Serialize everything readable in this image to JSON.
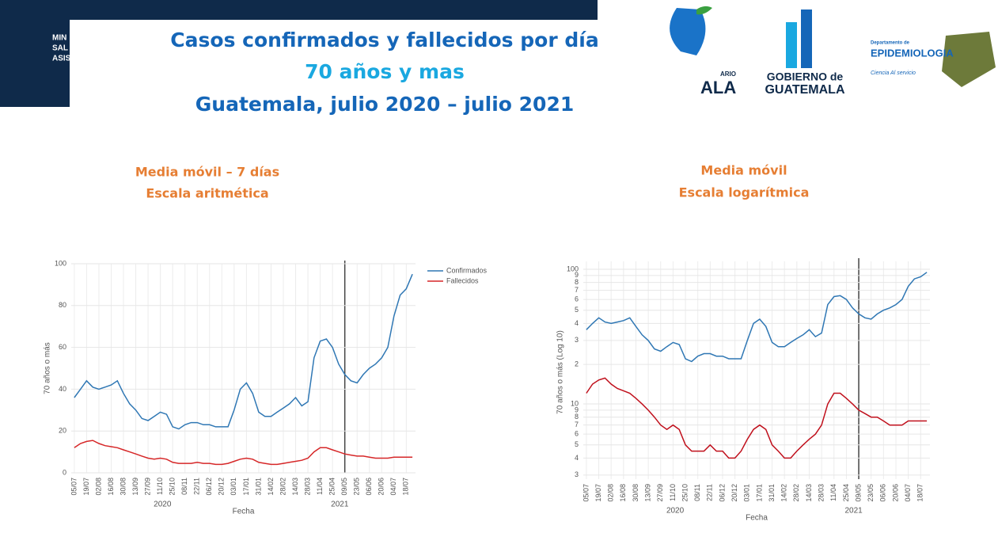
{
  "header": {
    "ministry_lines": [
      "MIN",
      "SAL",
      "ASIS"
    ],
    "title_lines": [
      "Casos confirmados y fallecidos por día",
      "70 años y mas",
      "Guatemala, julio 2020 – julio 2021"
    ],
    "logos": {
      "bicentenario_fragment": "ARIO",
      "bicentenario_name": "ALA",
      "gobierno_top": "GOBIERNO de",
      "gobierno_bottom": "GUATEMALA",
      "dept_top": "Departamento de",
      "dept_name": "EPIDEMIOLOGIA",
      "dept_motto": "Ciencia Al servicio"
    }
  },
  "chart_data": [
    {
      "type": "line",
      "title_lines": [
        "Media móvil – 7 días",
        "Escala aritmética"
      ],
      "xlabel": "Fecha",
      "ylabel": "70 años o más",
      "year_labels": [
        "2020",
        "2021"
      ],
      "categories": [
        "05/07",
        null,
        "19/07",
        null,
        "02/08",
        null,
        "16/08",
        null,
        "30/08",
        null,
        "13/09",
        null,
        "27/09",
        null,
        "11/10",
        null,
        "25/10",
        null,
        "08/11",
        null,
        "22/11",
        null,
        "06/12",
        null,
        "20/12",
        null,
        "03/01",
        null,
        "17/01",
        null,
        "31/01",
        null,
        "14/02",
        null,
        "28/02",
        null,
        "14/03",
        null,
        "28/03",
        null,
        "11/04",
        null,
        "25/04",
        null,
        "09/05",
        null,
        "23/05",
        null,
        "06/06",
        null,
        "20/06",
        null,
        "04/07",
        null,
        "18/07",
        null
      ],
      "series": [
        {
          "name": "Confirmados",
          "color": "#2f77b4",
          "values": [
            36,
            40,
            44,
            41,
            40,
            41,
            42,
            44,
            38,
            33,
            30,
            26,
            25,
            27,
            29,
            28,
            22,
            21,
            23,
            24,
            24,
            23,
            23,
            22,
            22,
            22,
            30,
            40,
            43,
            38,
            29,
            27,
            27,
            29,
            31,
            33,
            36,
            32,
            34,
            55,
            63,
            64,
            60,
            52,
            47,
            44,
            43,
            47,
            50,
            52,
            55,
            60,
            75,
            85,
            88,
            95
          ]
        },
        {
          "name": "Fallecidos",
          "color": "#d62728",
          "values": [
            12,
            14,
            15,
            15.5,
            14,
            13,
            12.5,
            12,
            11,
            10,
            9,
            8,
            7,
            6.5,
            7,
            6.5,
            5,
            4.5,
            4.5,
            4.5,
            5,
            4.5,
            4.5,
            4,
            4,
            4.5,
            5.5,
            6.5,
            7,
            6.5,
            5,
            4.5,
            4,
            4,
            4.5,
            5,
            5.5,
            6,
            7,
            10,
            12,
            12,
            11,
            10,
            9,
            8.5,
            8,
            8,
            7.5,
            7,
            7,
            7,
            7.5,
            7.5,
            7.5,
            7.5
          ]
        }
      ],
      "ylim": [
        0,
        100
      ],
      "yticks": [
        0,
        20,
        40,
        60,
        80,
        100
      ],
      "grid": true,
      "legend": "top-right",
      "reference_line_x": 44
    },
    {
      "type": "line",
      "title_lines": [
        "Media móvil",
        "Escala logarítmica"
      ],
      "xlabel": "Fecha",
      "ylabel": "70 años o más (Log 10)",
      "year_labels": [
        "2020",
        "2021"
      ],
      "log_scale": true,
      "grid": true,
      "reference_line_x": 44,
      "categories": [
        "05/07",
        null,
        "19/07",
        null,
        "02/08",
        null,
        "16/08",
        null,
        "30/08",
        null,
        "13/09",
        null,
        "27/09",
        null,
        "11/10",
        null,
        "25/10",
        null,
        "08/11",
        null,
        "22/11",
        null,
        "06/12",
        null,
        "20/12",
        null,
        "03/01",
        null,
        "17/01",
        null,
        "31/01",
        null,
        "14/02",
        null,
        "28/02",
        null,
        "14/03",
        null,
        "28/03",
        null,
        "11/04",
        null,
        "25/04",
        null,
        "09/05",
        null,
        "23/05",
        null,
        "06/06",
        null,
        "20/06",
        null,
        "04/07",
        null,
        "18/07",
        null
      ],
      "panels": [
        {
          "series": [
            {
              "name": "Confirmados",
              "color": "#2f77b4",
              "values": [
                36,
                40,
                44,
                41,
                40,
                41,
                42,
                44,
                38,
                33,
                30,
                26,
                25,
                27,
                29,
                28,
                22,
                21,
                23,
                24,
                24,
                23,
                23,
                22,
                22,
                22,
                30,
                40,
                43,
                38,
                29,
                27,
                27,
                29,
                31,
                33,
                36,
                32,
                34,
                55,
                63,
                64,
                60,
                52,
                47,
                44,
                43,
                47,
                50,
                52,
                55,
                60,
                75,
                85,
                88,
                95
              ]
            }
          ],
          "ylim": [
            18,
            100
          ],
          "yticks": [
            {
              "value": 20,
              "label": "2"
            },
            {
              "value": 30,
              "label": "3"
            },
            {
              "value": 40,
              "label": "4"
            },
            {
              "value": 50,
              "label": "5"
            },
            {
              "value": 60,
              "label": "6"
            },
            {
              "value": 70,
              "label": "7"
            },
            {
              "value": 80,
              "label": "8"
            },
            {
              "value": 90,
              "label": "9"
            },
            100
          ]
        },
        {
          "series": [
            {
              "name": "Fallecidos",
              "color": "#c0101c",
              "values": [
                12,
                14,
                15,
                15.5,
                14,
                13,
                12.5,
                12,
                11,
                10,
                9,
                8,
                7,
                6.5,
                7,
                6.5,
                5,
                4.5,
                4.5,
                4.5,
                5,
                4.5,
                4.5,
                4,
                4,
                4.5,
                5.5,
                6.5,
                7,
                6.5,
                5,
                4.5,
                4,
                4,
                4.5,
                5,
                5.5,
                6,
                7,
                10,
                12,
                12,
                11,
                10,
                9,
                8.5,
                8,
                8,
                7.5,
                7,
                7,
                7,
                7.5,
                7.5,
                7.5,
                7.5
              ]
            }
          ],
          "ylim": [
            2.8,
            16
          ],
          "yticks": [
            3,
            4,
            5,
            6,
            7,
            8,
            9,
            10
          ]
        }
      ]
    }
  ]
}
